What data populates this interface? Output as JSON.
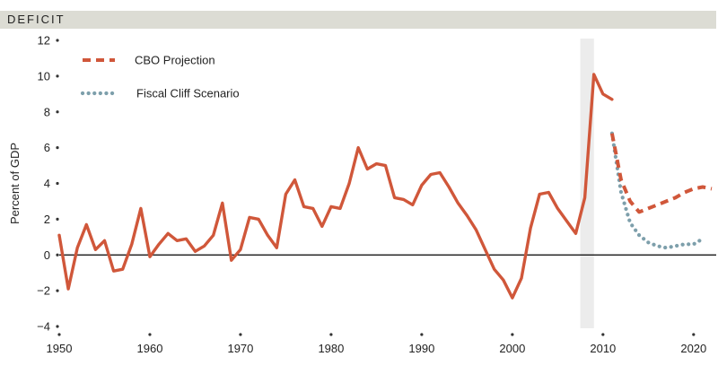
{
  "header": {
    "title": "DEFICIT"
  },
  "colors": {
    "header_band": "#dcdcd4",
    "actual_line": "#d0573a",
    "cbo_projection": "#d0573a",
    "fiscal_cliff": "#7d9fab",
    "recession_shade": "#ececec",
    "zero_line": "#000000",
    "text": "#222222"
  },
  "chart_data": {
    "type": "line",
    "title": "",
    "xlabel": "",
    "ylabel": "Percent of GDP",
    "xlim": [
      1950,
      2022
    ],
    "ylim": [
      -4,
      12
    ],
    "xticks": [
      1950,
      1960,
      1970,
      1980,
      1990,
      2000,
      2010,
      2020
    ],
    "yticks": [
      12,
      10,
      8,
      6,
      4,
      2,
      0,
      -2,
      -4
    ],
    "ytick_labels": [
      "12",
      "10",
      "8",
      "6",
      "4",
      "2",
      "0",
      "−2",
      "−4"
    ],
    "grid": false,
    "legend_position": "top-left",
    "shaded_period": {
      "x_start": 2007.5,
      "x_end": 2009
    },
    "series": [
      {
        "style": "solid",
        "x": [
          1950,
          1951,
          1952,
          1953,
          1954,
          1955,
          1956,
          1957,
          1958,
          1959,
          1960,
          1961,
          1962,
          1963,
          1964,
          1965,
          1966,
          1967,
          1968,
          1969,
          1970,
          1971,
          1972,
          1973,
          1974,
          1975,
          1976,
          1977,
          1978,
          1979,
          1980,
          1981,
          1982,
          1983,
          1984,
          1985,
          1986,
          1987,
          1988,
          1989,
          1990,
          1991,
          1992,
          1993,
          1994,
          1995,
          1996,
          1997,
          1998,
          1999,
          2000,
          2001,
          2002,
          2003,
          2004,
          2005,
          2006,
          2007,
          2008,
          2009,
          2010,
          2011
        ],
        "y": [
          1.1,
          -1.9,
          0.4,
          1.7,
          0.3,
          0.8,
          -0.9,
          -0.8,
          0.6,
          2.6,
          -0.1,
          0.6,
          1.2,
          0.8,
          0.9,
          0.2,
          0.5,
          1.1,
          2.9,
          -0.3,
          0.3,
          2.1,
          2.0,
          1.1,
          0.4,
          3.4,
          4.2,
          2.7,
          2.6,
          1.6,
          2.7,
          2.6,
          4.0,
          6.0,
          4.8,
          5.1,
          5.0,
          3.2,
          3.1,
          2.8,
          3.9,
          4.5,
          4.6,
          3.8,
          2.9,
          2.2,
          1.4,
          0.3,
          -0.8,
          -1.4,
          -2.4,
          -1.3,
          1.5,
          3.4,
          3.5,
          2.6,
          1.9,
          1.2,
          3.2,
          10.1,
          9.0,
          8.7
        ]
      },
      {
        "name": "CBO Projection",
        "style": "dashed",
        "x": [
          2011,
          2012,
          2013,
          2014,
          2015,
          2016,
          2017,
          2018,
          2019,
          2020,
          2021,
          2022
        ],
        "y": [
          6.8,
          4.2,
          3.0,
          2.4,
          2.6,
          2.8,
          3.0,
          3.2,
          3.5,
          3.7,
          3.8,
          3.7
        ]
      },
      {
        "name": "Fiscal Cliff Scenario",
        "style": "dotted",
        "x": [
          2011,
          2012,
          2013,
          2014,
          2015,
          2016,
          2017,
          2018,
          2019,
          2020,
          2021
        ],
        "y": [
          6.8,
          3.5,
          1.8,
          1.1,
          0.7,
          0.5,
          0.4,
          0.5,
          0.6,
          0.6,
          0.9
        ]
      }
    ]
  }
}
